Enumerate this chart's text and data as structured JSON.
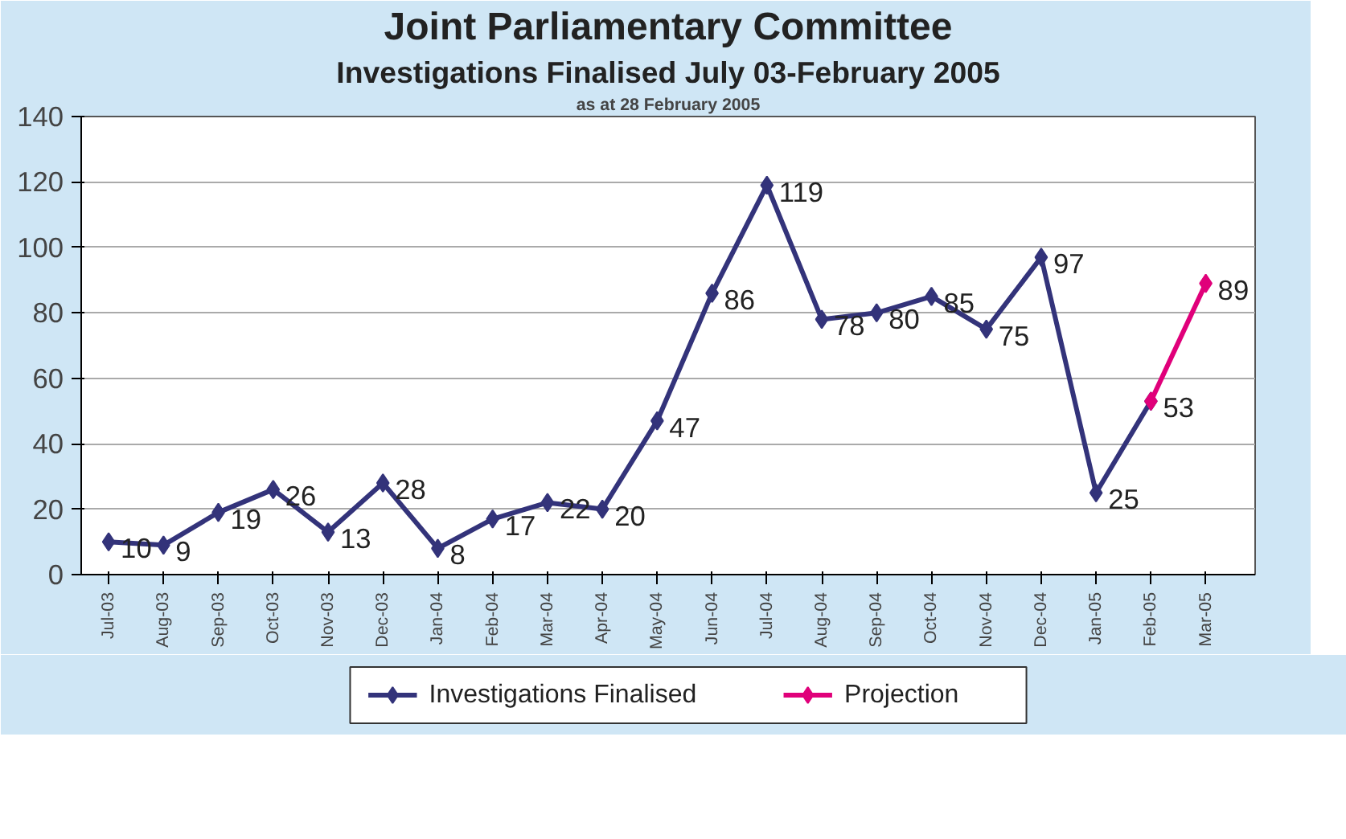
{
  "chart_data": {
    "type": "line",
    "title": "Joint Parliamentary Committee",
    "subtitle": "Investigations Finalised July 03-February 2005",
    "annotations": [
      "as at 28 February 2005"
    ],
    "categories": [
      "Jul-03",
      "Aug-03",
      "Sep-03",
      "Oct-03",
      "Nov-03",
      "Dec-03",
      "Jan-04",
      "Feb-04",
      "Mar-04",
      "Apr-04",
      "May-04",
      "Jun-04",
      "Jul-04",
      "Aug-04",
      "Sep-04",
      "Oct-04",
      "Nov-04",
      "Dec-04",
      "Jan-05",
      "Feb-05",
      "Mar-05"
    ],
    "series": [
      {
        "name": "Investigations Finalised",
        "color": "#33337a",
        "values": [
          10,
          9,
          19,
          26,
          13,
          28,
          8,
          17,
          22,
          20,
          47,
          86,
          119,
          78,
          80,
          85,
          75,
          97,
          25,
          53,
          null
        ],
        "value_labels": [
          "10",
          "9",
          "19",
          "26",
          "13",
          "28",
          "8",
          "17",
          "22",
          "20",
          "47",
          "86",
          "119",
          "78",
          "80",
          "85",
          "75",
          "97",
          "25",
          "53",
          null
        ]
      },
      {
        "name": "Projection",
        "color": "#e0007a",
        "values": [
          null,
          null,
          null,
          null,
          null,
          null,
          null,
          null,
          null,
          null,
          null,
          null,
          null,
          null,
          null,
          null,
          null,
          null,
          null,
          53,
          89
        ],
        "value_labels": [
          null,
          null,
          null,
          null,
          null,
          null,
          null,
          null,
          null,
          null,
          null,
          null,
          null,
          null,
          null,
          null,
          null,
          null,
          null,
          null,
          "89"
        ]
      }
    ],
    "ylim": [
      0,
      140
    ],
    "yticks": [
      0,
      20,
      40,
      60,
      80,
      100,
      120,
      140
    ],
    "grid": "y",
    "legend": "bottom",
    "marker": "diamond",
    "line_style": "solid"
  }
}
